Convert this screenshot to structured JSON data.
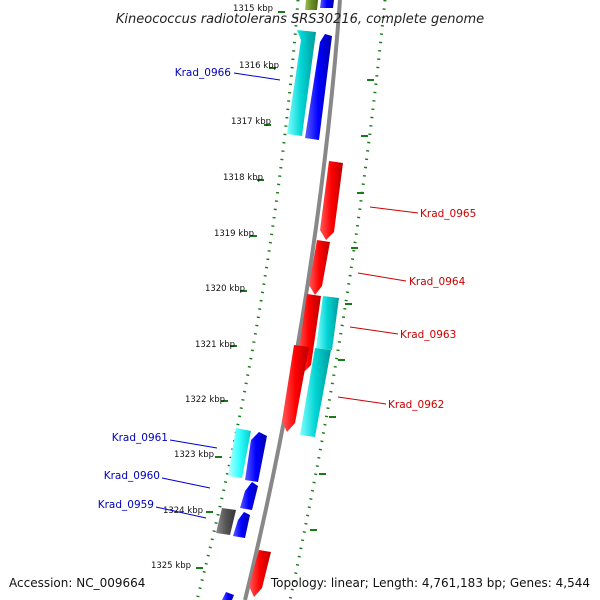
{
  "title": "Kineococcus radiotolerans SRS30216, complete genome",
  "accession": "Accession: NC_009664",
  "summary": "Topology: linear; Length: 4,761,183 bp; Genes: 4,544",
  "colors": {
    "forward_gene": "#ff0000",
    "reverse_gene": "#0000ff",
    "forward_label": "#cc0000",
    "reverse_label": "#0000bb",
    "rna_gene": "#00cccc",
    "pseudogene": "#555555",
    "other_gene": "#6b8e23",
    "backbone": "#888888",
    "tick_dots": "#1a7a1a"
  },
  "ticks": [
    "1315 kbp",
    "1316 kbp",
    "1317 kbp",
    "1318 kbp",
    "1319 kbp",
    "1320 kbp",
    "1321 kbp",
    "1322 kbp",
    "1323 kbp",
    "1324 kbp",
    "1325 kbp"
  ],
  "gene_labels": {
    "forward": [
      "Krad_0965",
      "Krad_0964",
      "Krad_0963",
      "Krad_0962"
    ],
    "reverse": [
      "Krad_0966",
      "Krad_0961",
      "Krad_0960",
      "Krad_0959"
    ]
  }
}
